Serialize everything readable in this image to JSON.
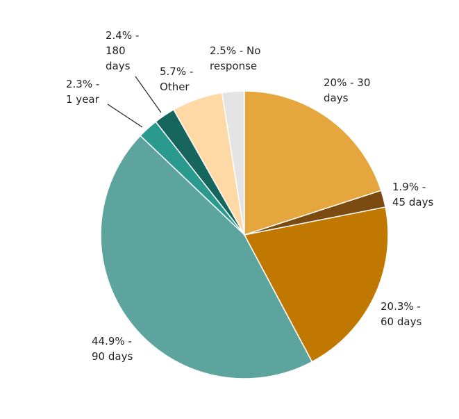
{
  "chart_data": {
    "type": "pie",
    "categories": [
      "20% - 30 days",
      "1.9% - 45 days",
      "20.3% - 60 days",
      "44.9% - 90 days",
      "2.3% - 1 year",
      "2.4% - 180 days",
      "5.7% - Other",
      "2.5% - No response"
    ],
    "values": [
      20,
      1.9,
      20.3,
      44.9,
      2.3,
      2.4,
      5.7,
      2.5
    ],
    "colors": [
      "#e6a63e",
      "#7a4a10",
      "#c17800",
      "#5ea49e",
      "#2a9a8f",
      "#17665e",
      "#fed9a6",
      "#e4e4e4"
    ]
  }
}
